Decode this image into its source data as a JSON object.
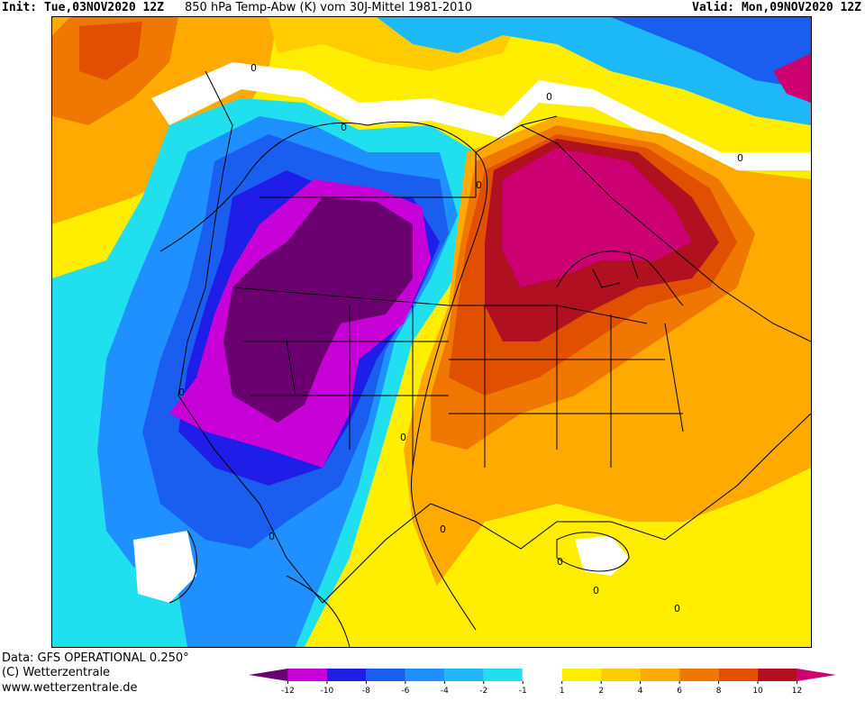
{
  "header": {
    "init": "Init: Tue,03NOV2020 12Z",
    "title": "850 hPa Temp-Abw (K) vom 30J-Mittel 1981-2010",
    "valid": "Valid: Mon,09NOV2020 12Z"
  },
  "footer": {
    "data_source": "Data: GFS OPERATIONAL 0.250°",
    "copyright": "(C) Wetterzentrale",
    "website": "www.wetterzentrale.de"
  },
  "map": {
    "region": "North America",
    "contour_labels": [
      "0",
      "0",
      "0",
      "0",
      "0",
      "0",
      "0",
      "0",
      "0",
      "0",
      "0",
      "0"
    ]
  },
  "legend": {
    "ticks": [
      "-12",
      "-10",
      "-8",
      "-6",
      "-4",
      "-2",
      "-1",
      "1",
      "2",
      "4",
      "6",
      "8",
      "10",
      "12"
    ],
    "colors": [
      "#6a0070",
      "#c800d8",
      "#1e1ee8",
      "#1a5ef0",
      "#1e90ff",
      "#1cb8f8",
      "#20e0f0",
      "#ffffff",
      "#ffee00",
      "#ffcc00",
      "#ffaa00",
      "#f07800",
      "#e05000",
      "#b01020",
      "#cc0070"
    ]
  }
}
